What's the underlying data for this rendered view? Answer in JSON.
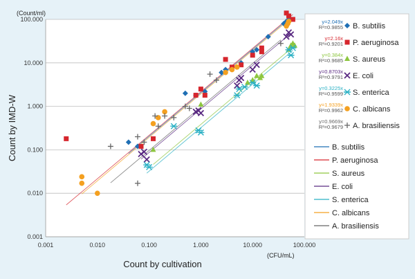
{
  "chart_data": {
    "type": "scatter",
    "title": "",
    "xlabel": "Count by cultivation",
    "ylabel": "Count by IMD-W",
    "x_unit": "(CFU/mL)",
    "y_unit": "(Count/ml)",
    "x_scale": "log",
    "y_scale": "log",
    "xlim": [
      0.001,
      100
    ],
    "ylim": [
      0.001,
      100
    ],
    "x_ticks": [
      "0.001",
      "0.010",
      "0.100",
      "1.000",
      "10.000",
      "100.000"
    ],
    "y_ticks": [
      "0.001",
      "0.010",
      "0.100",
      "1.000",
      "10.000",
      "100.000"
    ],
    "grid": "horizontal",
    "legend_position": "right",
    "series": [
      {
        "name": "B. subtilis",
        "color": "#1f6fb4",
        "marker": "diamond",
        "equation": "y=2.049x",
        "r2": "R²=0.9855",
        "slope": 2.049,
        "points": [
          [
            0.04,
            0.15
          ],
          [
            0.06,
            0.12
          ],
          [
            0.5,
            2.0
          ],
          [
            0.8,
            1.8
          ],
          [
            1.2,
            2.2
          ],
          [
            2.5,
            6.0
          ],
          [
            3.0,
            7.0
          ],
          [
            6.0,
            10.0
          ],
          [
            10,
            18.0
          ],
          [
            12,
            20.0
          ],
          [
            20,
            40.0
          ],
          [
            40,
            80.0
          ],
          [
            45,
            90.0
          ],
          [
            50,
            100.0
          ]
        ]
      },
      {
        "name": "P. aeruginosa",
        "color": "#d6262d",
        "marker": "square",
        "equation": "y=2.16x",
        "r2": "R²=0.9201",
        "slope": 2.16,
        "points": [
          [
            0.0025,
            0.18
          ],
          [
            0.07,
            0.12
          ],
          [
            0.12,
            0.18
          ],
          [
            0.8,
            1.8
          ],
          [
            1.0,
            2.5
          ],
          [
            1.2,
            1.8
          ],
          [
            3.0,
            12.0
          ],
          [
            4.0,
            8.0
          ],
          [
            6.0,
            9.0
          ],
          [
            10,
            15.0
          ],
          [
            15,
            18.0
          ],
          [
            15,
            22.0
          ],
          [
            45,
            140.0
          ],
          [
            50,
            120.0
          ],
          [
            60,
            100.0
          ]
        ]
      },
      {
        "name": "S. aureus",
        "color": "#8dc63f",
        "marker": "triangle",
        "equation": "y=0.384x",
        "r2": "R²=0.9685",
        "slope": 0.384,
        "points": [
          [
            0.12,
            0.1
          ],
          [
            1.0,
            1.1
          ],
          [
            8.0,
            3.5
          ],
          [
            10,
            4.0
          ],
          [
            12,
            5.0
          ],
          [
            14,
            4.5
          ],
          [
            15,
            5.0
          ],
          [
            50,
            20.0
          ],
          [
            55,
            25.0
          ],
          [
            60,
            28.0
          ],
          [
            65,
            25.0
          ]
        ]
      },
      {
        "name": "E. coli",
        "color": "#5a2a82",
        "marker": "x",
        "equation": "y=0.8703x",
        "r2": "R²=0.9791",
        "slope": 0.8703,
        "points": [
          [
            0.07,
            0.08
          ],
          [
            0.08,
            0.09
          ],
          [
            0.09,
            0.06
          ],
          [
            0.8,
            0.75
          ],
          [
            0.9,
            0.8
          ],
          [
            1.0,
            0.7
          ],
          [
            5.0,
            3.0
          ],
          [
            5.5,
            4.0
          ],
          [
            6.0,
            4.5
          ],
          [
            10,
            7.0
          ],
          [
            12,
            9.0
          ],
          [
            45,
            40.0
          ],
          [
            50,
            50.0
          ],
          [
            55,
            45.0
          ]
        ]
      },
      {
        "name": "S. enterica",
        "color": "#2ab0c4",
        "marker": "asterisk",
        "equation": "y=0.3225x",
        "r2": "R²=0.9599",
        "slope": 0.3225,
        "points": [
          [
            0.09,
            0.045
          ],
          [
            0.1,
            0.04
          ],
          [
            0.3,
            0.35
          ],
          [
            0.9,
            0.28
          ],
          [
            1.0,
            0.25
          ],
          [
            5.0,
            1.8
          ],
          [
            5.5,
            2.5
          ],
          [
            7.0,
            2.8
          ],
          [
            10,
            3.5
          ],
          [
            12,
            3.0
          ],
          [
            50,
            20.0
          ],
          [
            55,
            15.0
          ],
          [
            60,
            22.0
          ]
        ]
      },
      {
        "name": "C. albicans",
        "color": "#f4a020",
        "marker": "circle",
        "equation": "y=1.9339x",
        "r2": "R²=0.9962",
        "slope": 1.9339,
        "points": [
          [
            0.005,
            0.024
          ],
          [
            0.005,
            0.017
          ],
          [
            0.01,
            0.01
          ],
          [
            0.12,
            0.4
          ],
          [
            0.15,
            0.55
          ],
          [
            0.2,
            0.75
          ],
          [
            3.0,
            6.0
          ],
          [
            4.0,
            7.0
          ],
          [
            5.0,
            8.0
          ],
          [
            45,
            70.0
          ],
          [
            48,
            80.0
          ],
          [
            50,
            90.0
          ]
        ]
      },
      {
        "name": "A. brasiliensis",
        "color": "#666666",
        "marker": "plus",
        "equation": "y=0.9669x",
        "r2": "R²=0.9679",
        "slope": 0.9669,
        "points": [
          [
            0.018,
            0.12
          ],
          [
            0.06,
            0.017
          ],
          [
            0.06,
            0.2
          ],
          [
            0.08,
            0.15
          ],
          [
            0.13,
            0.6
          ],
          [
            0.15,
            0.35
          ],
          [
            0.2,
            0.6
          ],
          [
            0.3,
            0.55
          ],
          [
            0.5,
            1.0
          ],
          [
            0.6,
            0.9
          ],
          [
            1.5,
            5.5
          ],
          [
            2.0,
            4.0
          ],
          [
            35,
            28.0
          ]
        ]
      }
    ]
  }
}
